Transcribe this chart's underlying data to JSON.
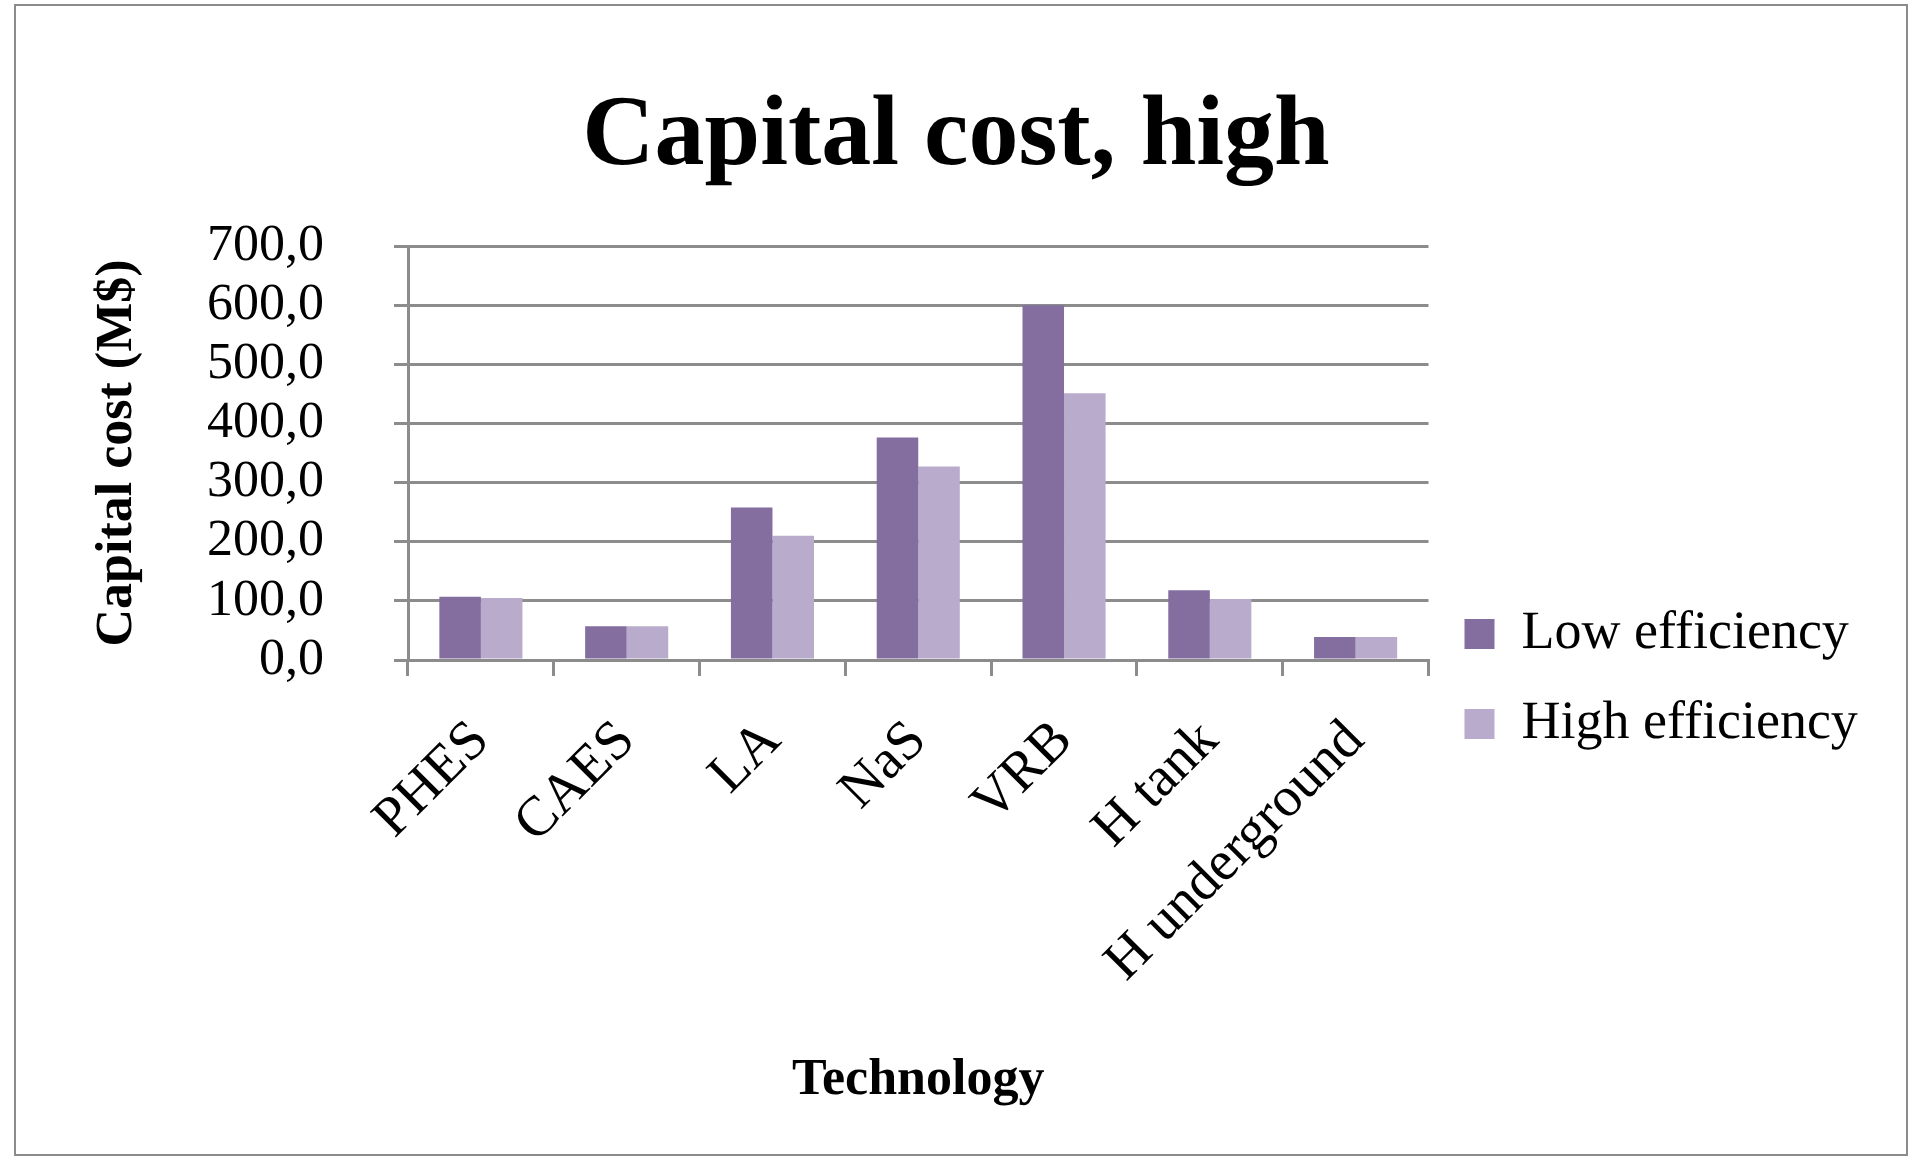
{
  "chart_data": {
    "type": "bar",
    "title": "Capital cost, high",
    "xlabel": "Technology",
    "ylabel": "Capital cost (M$)",
    "categories": [
      "PHES",
      "CAES",
      "LA",
      "NaS",
      "VRB",
      "H tank",
      "H underground"
    ],
    "series": [
      {
        "name": "Low efficiency",
        "color": "#846ea0",
        "values": [
          107,
          57,
          258,
          376,
          600,
          118,
          39
        ]
      },
      {
        "name": "High efficiency",
        "color": "#b9abcb",
        "values": [
          105,
          57,
          210,
          327,
          451,
          103,
          39
        ]
      }
    ],
    "ylim": [
      0,
      700
    ],
    "yticks": [
      {
        "value": 0,
        "label": "0,0"
      },
      {
        "value": 100,
        "label": "100,0"
      },
      {
        "value": 200,
        "label": "200,0"
      },
      {
        "value": 300,
        "label": "300,0"
      },
      {
        "value": 400,
        "label": "400,0"
      },
      {
        "value": 500,
        "label": "500,0"
      },
      {
        "value": 600,
        "label": "600,0"
      },
      {
        "value": 700,
        "label": "700,0"
      }
    ],
    "grid": "y",
    "legend": "right"
  }
}
